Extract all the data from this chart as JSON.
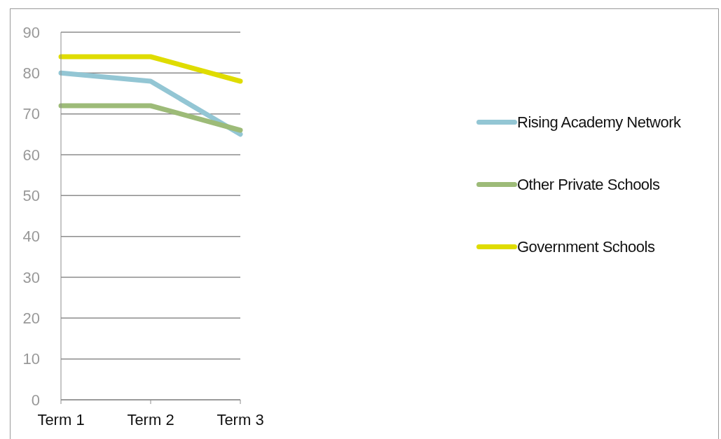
{
  "chart_data": {
    "type": "line",
    "categories": [
      "Term 1",
      "Term 2",
      "Term 3"
    ],
    "series": [
      {
        "name": "Rising Academy Network",
        "color": "#93c6d4",
        "values": [
          80,
          78,
          65
        ]
      },
      {
        "name": "Other Private Schools",
        "color": "#9dbb78",
        "values": [
          72,
          72,
          66
        ]
      },
      {
        "name": "Government Schools",
        "color": "#dfdc00",
        "values": [
          84,
          84,
          78
        ]
      }
    ],
    "ylim": [
      0,
      90
    ],
    "yticks": [
      0,
      10,
      20,
      30,
      40,
      50,
      60,
      70,
      80,
      90
    ],
    "grid": "y",
    "legend": "right",
    "marker": "none",
    "line_style": "solid"
  }
}
